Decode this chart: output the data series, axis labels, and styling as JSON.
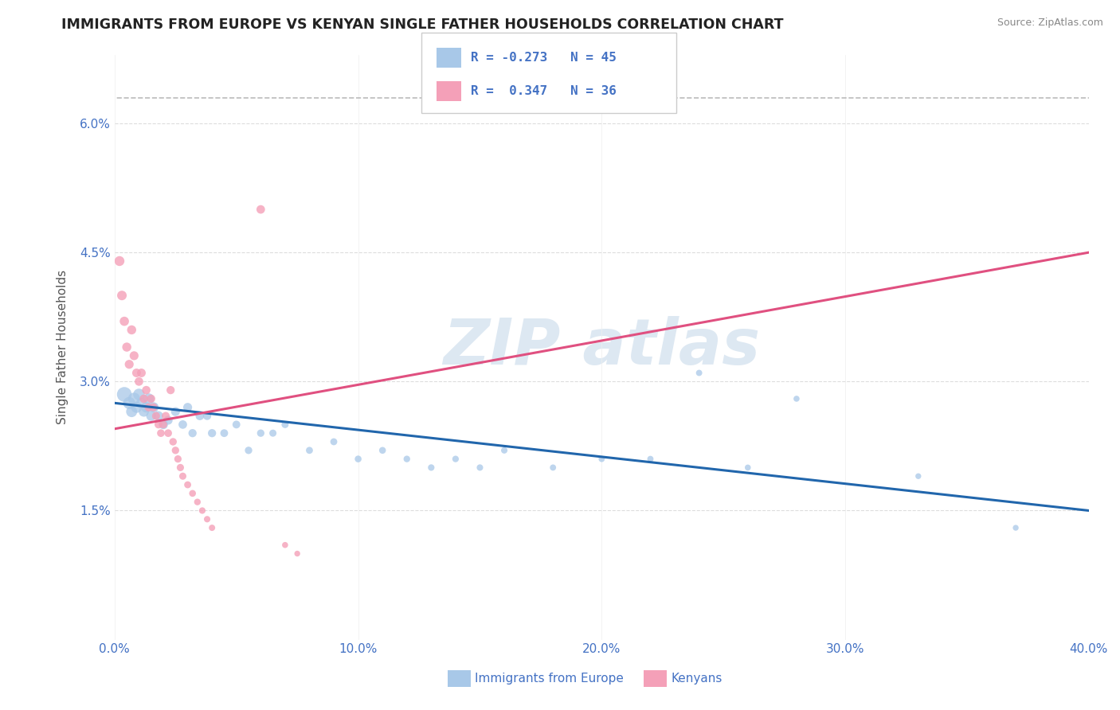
{
  "title": "IMMIGRANTS FROM EUROPE VS KENYAN SINGLE FATHER HOUSEHOLDS CORRELATION CHART",
  "source": "Source: ZipAtlas.com",
  "ylabel": "Single Father Households",
  "xlim": [
    0.0,
    0.4
  ],
  "ylim": [
    0.0,
    0.068
  ],
  "yticks": [
    0.015,
    0.03,
    0.045,
    0.06
  ],
  "ytick_labels": [
    "1.5%",
    "3.0%",
    "4.5%",
    "6.0%"
  ],
  "xticks": [
    0.0,
    0.1,
    0.2,
    0.3,
    0.4
  ],
  "xtick_labels": [
    "0.0%",
    "10.0%",
    "20.0%",
    "30.0%",
    "40.0%"
  ],
  "blue_label": "Immigrants from Europe",
  "pink_label": "Kenyans",
  "blue_R": -0.273,
  "blue_N": 45,
  "pink_R": 0.347,
  "pink_N": 36,
  "blue_color": "#a8c8e8",
  "pink_color": "#f4a0b8",
  "blue_line_color": "#2166ac",
  "pink_line_color": "#e05080",
  "axis_color": "#4472c4",
  "blue_scatter": [
    [
      0.004,
      0.0285
    ],
    [
      0.006,
      0.0275
    ],
    [
      0.007,
      0.0265
    ],
    [
      0.008,
      0.028
    ],
    [
      0.009,
      0.027
    ],
    [
      0.01,
      0.0285
    ],
    [
      0.011,
      0.0275
    ],
    [
      0.012,
      0.0265
    ],
    [
      0.013,
      0.027
    ],
    [
      0.014,
      0.028
    ],
    [
      0.015,
      0.026
    ],
    [
      0.016,
      0.027
    ],
    [
      0.018,
      0.026
    ],
    [
      0.02,
      0.025
    ],
    [
      0.022,
      0.0255
    ],
    [
      0.025,
      0.0265
    ],
    [
      0.028,
      0.025
    ],
    [
      0.03,
      0.027
    ],
    [
      0.032,
      0.024
    ],
    [
      0.035,
      0.026
    ],
    [
      0.038,
      0.026
    ],
    [
      0.04,
      0.024
    ],
    [
      0.045,
      0.024
    ],
    [
      0.05,
      0.025
    ],
    [
      0.055,
      0.022
    ],
    [
      0.06,
      0.024
    ],
    [
      0.065,
      0.024
    ],
    [
      0.07,
      0.025
    ],
    [
      0.08,
      0.022
    ],
    [
      0.09,
      0.023
    ],
    [
      0.1,
      0.021
    ],
    [
      0.11,
      0.022
    ],
    [
      0.12,
      0.021
    ],
    [
      0.13,
      0.02
    ],
    [
      0.14,
      0.021
    ],
    [
      0.15,
      0.02
    ],
    [
      0.16,
      0.022
    ],
    [
      0.18,
      0.02
    ],
    [
      0.2,
      0.021
    ],
    [
      0.22,
      0.021
    ],
    [
      0.24,
      0.031
    ],
    [
      0.26,
      0.02
    ],
    [
      0.28,
      0.028
    ],
    [
      0.33,
      0.019
    ],
    [
      0.37,
      0.013
    ]
  ],
  "pink_scatter": [
    [
      0.002,
      0.044
    ],
    [
      0.003,
      0.04
    ],
    [
      0.004,
      0.037
    ],
    [
      0.005,
      0.034
    ],
    [
      0.006,
      0.032
    ],
    [
      0.007,
      0.036
    ],
    [
      0.008,
      0.033
    ],
    [
      0.009,
      0.031
    ],
    [
      0.01,
      0.03
    ],
    [
      0.011,
      0.031
    ],
    [
      0.012,
      0.028
    ],
    [
      0.013,
      0.029
    ],
    [
      0.014,
      0.027
    ],
    [
      0.015,
      0.028
    ],
    [
      0.016,
      0.027
    ],
    [
      0.017,
      0.026
    ],
    [
      0.018,
      0.025
    ],
    [
      0.019,
      0.024
    ],
    [
      0.02,
      0.025
    ],
    [
      0.021,
      0.026
    ],
    [
      0.022,
      0.024
    ],
    [
      0.023,
      0.029
    ],
    [
      0.024,
      0.023
    ],
    [
      0.025,
      0.022
    ],
    [
      0.026,
      0.021
    ],
    [
      0.027,
      0.02
    ],
    [
      0.028,
      0.019
    ],
    [
      0.03,
      0.018
    ],
    [
      0.032,
      0.017
    ],
    [
      0.034,
      0.016
    ],
    [
      0.036,
      0.015
    ],
    [
      0.038,
      0.014
    ],
    [
      0.04,
      0.013
    ],
    [
      0.06,
      0.05
    ],
    [
      0.07,
      0.011
    ],
    [
      0.075,
      0.01
    ]
  ],
  "blue_line": [
    [
      0.0,
      0.0275
    ],
    [
      0.4,
      0.015
    ]
  ],
  "pink_line": [
    [
      0.0,
      0.0245
    ],
    [
      0.4,
      0.045
    ]
  ],
  "dashed_line": [
    [
      -0.005,
      0.063
    ],
    [
      0.4,
      0.063
    ]
  ],
  "blue_sizes": [
    180,
    120,
    100,
    120,
    100,
    110,
    90,
    85,
    90,
    95,
    80,
    85,
    75,
    70,
    65,
    65,
    60,
    65,
    55,
    60,
    55,
    55,
    50,
    50,
    45,
    45,
    42,
    42,
    40,
    40,
    38,
    38,
    36,
    35,
    35,
    34,
    34,
    32,
    32,
    32,
    32,
    30,
    30,
    28,
    28
  ],
  "pink_sizes": [
    80,
    75,
    70,
    68,
    65,
    68,
    65,
    62,
    60,
    62,
    58,
    58,
    55,
    56,
    54,
    52,
    50,
    48,
    50,
    52,
    48,
    55,
    46,
    45,
    44,
    43,
    42,
    40,
    38,
    36,
    35,
    34,
    33,
    60,
    30,
    28
  ]
}
